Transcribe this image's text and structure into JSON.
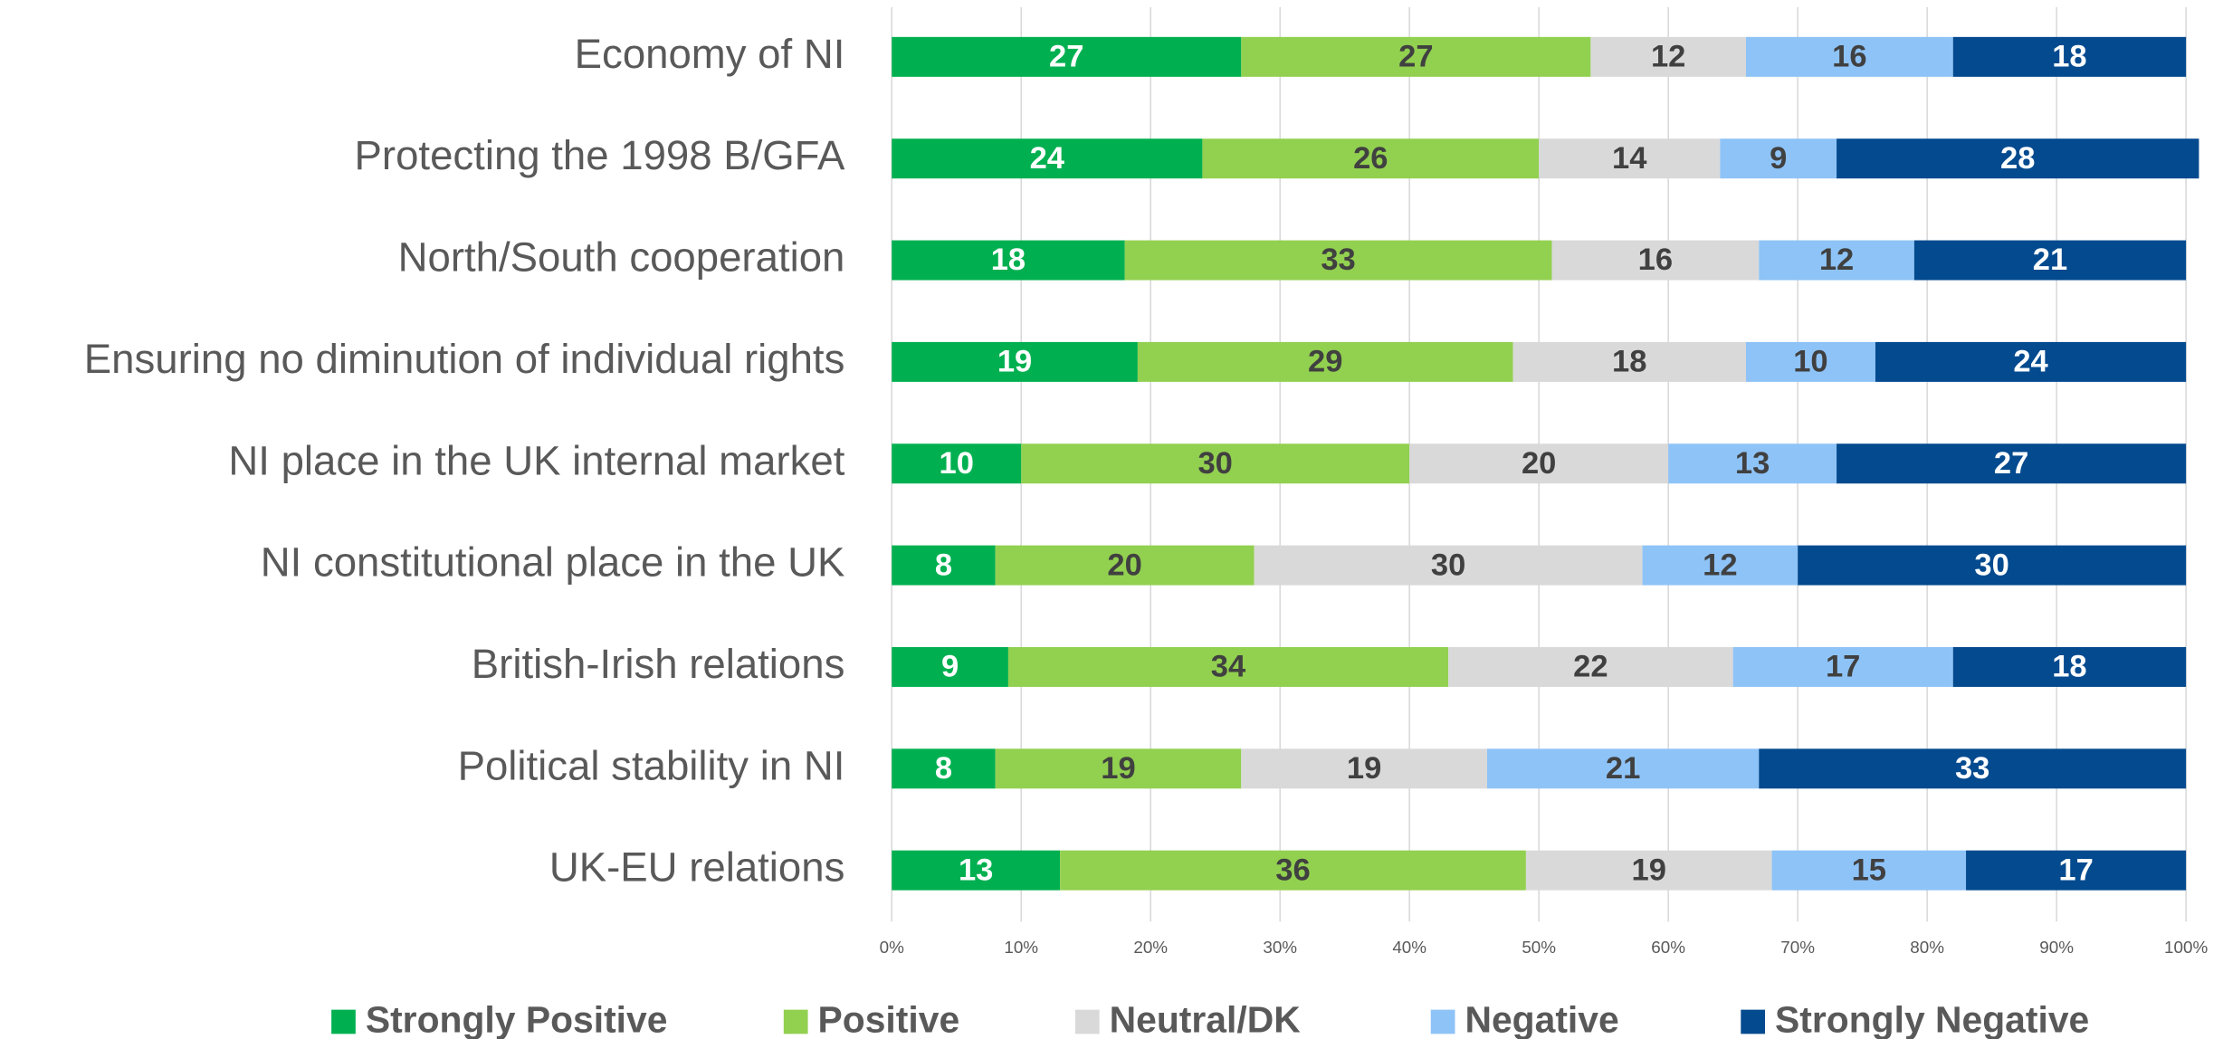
{
  "chart_data": {
    "type": "stacked-barh",
    "categories": [
      "Economy of NI",
      "Protecting the 1998 B/GFA",
      "North/South cooperation",
      "Ensuring no diminution of individual rights",
      "NI place in the UK internal market",
      "NI constitutional place in the UK",
      "British-Irish relations",
      "Political stability in NI",
      "UK-EU relations"
    ],
    "series": [
      {
        "name": "Strongly Positive",
        "color": "#00b050",
        "label_color": "#ffffff",
        "values": [
          27,
          24,
          18,
          19,
          10,
          8,
          9,
          8,
          13
        ]
      },
      {
        "name": "Positive",
        "color": "#92d050",
        "label_color": "#404040",
        "values": [
          27,
          26,
          33,
          29,
          30,
          20,
          34,
          19,
          36
        ]
      },
      {
        "name": "Neutral/DK",
        "color": "#d9d9d9",
        "label_color": "#404040",
        "values": [
          12,
          14,
          16,
          18,
          20,
          30,
          22,
          19,
          19
        ]
      },
      {
        "name": "Negative",
        "color": "#8ec3f7",
        "label_color": "#404040",
        "values": [
          16,
          9,
          12,
          10,
          13,
          12,
          17,
          21,
          15
        ]
      },
      {
        "name": "Strongly Negative",
        "color": "#034a8f",
        "label_color": "#ffffff",
        "values": [
          18,
          28,
          21,
          24,
          27,
          30,
          18,
          33,
          17
        ]
      }
    ],
    "xlim": [
      0,
      100
    ],
    "xticks": [
      {
        "value": 0,
        "label": "0%"
      },
      {
        "value": 10,
        "label": "10%"
      },
      {
        "value": 20,
        "label": "20%"
      },
      {
        "value": 30,
        "label": "30%"
      },
      {
        "value": 40,
        "label": "40%"
      },
      {
        "value": 50,
        "label": "50%"
      },
      {
        "value": 60,
        "label": "60%"
      },
      {
        "value": 70,
        "label": "70%"
      },
      {
        "value": 80,
        "label": "80%"
      },
      {
        "value": 90,
        "label": "90%"
      },
      {
        "value": 100,
        "label": "100%"
      }
    ],
    "grid": true,
    "legend": "bottom"
  }
}
